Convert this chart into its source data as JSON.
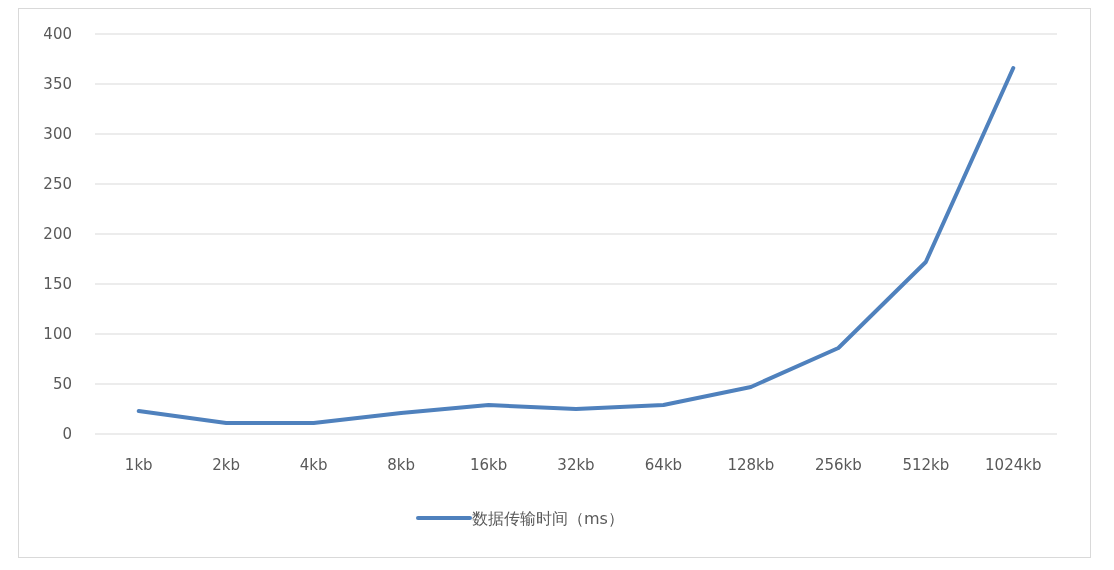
{
  "chart_data": {
    "type": "line",
    "categories": [
      "1kb",
      "2kb",
      "4kb",
      "8kb",
      "16kb",
      "32kb",
      "64kb",
      "128kb",
      "256kb",
      "512kb",
      "1024kb"
    ],
    "series": [
      {
        "name": "数据传输时间（ms）",
        "color": "#4f81bd",
        "values": [
          23,
          11,
          11,
          21,
          29,
          25,
          29,
          47,
          86,
          172,
          366
        ]
      }
    ],
    "ylim": [
      0,
      400
    ],
    "yticks": [
      0,
      50,
      100,
      150,
      200,
      250,
      300,
      350,
      400
    ],
    "grid": "y",
    "legend": "bottom",
    "marker": "none",
    "line_style": "solid"
  }
}
